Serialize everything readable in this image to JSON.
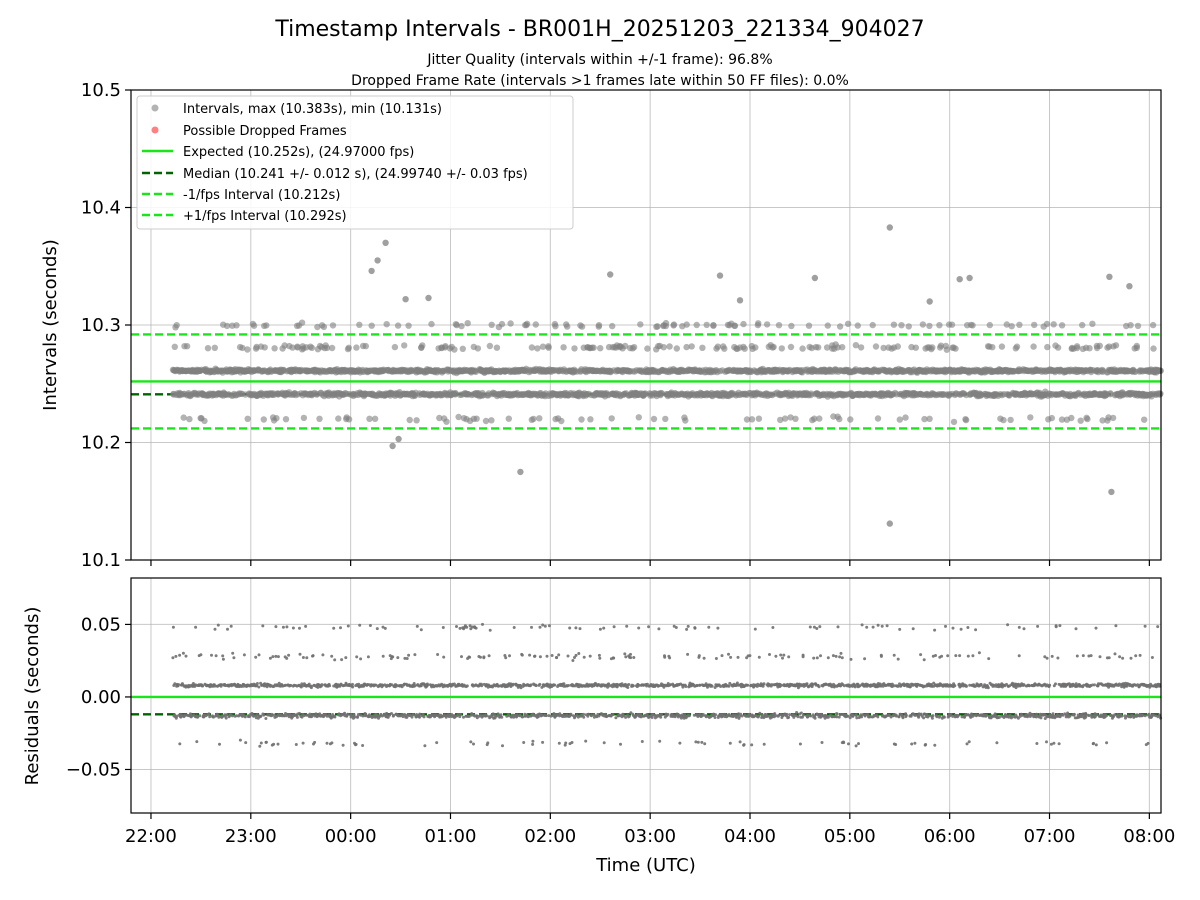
{
  "chart_data": [
    {
      "type": "scatter",
      "title": "Timestamp Intervals - BR001H_20251203_221334_904027",
      "subtitle_lines": [
        "Jitter Quality (intervals within +/-1 frame): 96.8%",
        "Dropped Frame Rate (intervals >1 frames late within 50 FF files): 0.0%"
      ],
      "xlabel": "",
      "ylabel": "Intervals (seconds)",
      "ylim": [
        10.1,
        10.5
      ],
      "yticks": [
        "10.1",
        "10.2",
        "10.3",
        "10.4",
        "10.5"
      ],
      "xlim": [
        "21:48",
        "08:07"
      ],
      "x_start": "22:13",
      "x_end": "08:07",
      "grid": true,
      "legend_position": "top-left",
      "series": [
        {
          "name": "Intervals, max (10.383s), min (10.131s)",
          "kind": "scatter",
          "color": "#808080",
          "band_values": [
            10.241,
            10.261,
            10.281
          ],
          "outliers": [
            [
              0.21,
              10.346
            ],
            [
              0.27,
              10.355
            ],
            [
              0.35,
              10.37
            ],
            [
              0.42,
              10.197
            ],
            [
              0.48,
              10.203
            ],
            [
              0.55,
              10.322
            ],
            [
              0.78,
              10.323
            ],
            [
              1.7,
              10.175
            ],
            [
              2.6,
              10.343
            ],
            [
              3.7,
              10.342
            ],
            [
              3.9,
              10.321
            ],
            [
              4.65,
              10.34
            ],
            [
              5.4,
              10.383
            ],
            [
              5.4,
              10.131
            ],
            [
              5.8,
              10.32
            ],
            [
              6.1,
              10.339
            ],
            [
              6.2,
              10.34
            ],
            [
              7.6,
              10.341
            ],
            [
              7.62,
              10.158
            ],
            [
              7.8,
              10.333
            ]
          ]
        },
        {
          "name": "Possible Dropped Frames",
          "kind": "scatter",
          "color": "#ff6060",
          "values": []
        },
        {
          "name": "Expected (10.252s), (24.97000 fps)",
          "kind": "hline",
          "value": 10.252,
          "color": "#19e619",
          "dash": "solid"
        },
        {
          "name": "Median (10.241 +/- 0.012 s), (24.99740 +/- 0.03 fps)",
          "kind": "hline",
          "value": 10.241,
          "color": "#006400",
          "dash": "dashed"
        },
        {
          "name": "-1/fps Interval (10.212s)",
          "kind": "hline",
          "value": 10.212,
          "color": "#19e619",
          "dash": "dashed"
        },
        {
          "name": "+1/fps Interval (10.292s)",
          "kind": "hline",
          "value": 10.292,
          "color": "#19e619",
          "dash": "dashed"
        }
      ]
    },
    {
      "type": "scatter",
      "title": "",
      "xlabel": "Time (UTC)",
      "ylabel": "Residuals (seconds)",
      "ylim": [
        -0.08,
        0.082
      ],
      "yticks": [
        "−0.05",
        "0.00",
        "0.05"
      ],
      "ytick_values": [
        -0.05,
        0.0,
        0.05
      ],
      "xticks": [
        "22:00",
        "23:00",
        "00:00",
        "01:00",
        "02:00",
        "03:00",
        "04:00",
        "05:00",
        "06:00",
        "07:00",
        "08:00"
      ],
      "grid": true,
      "series": [
        {
          "name": "",
          "kind": "scatter",
          "color": "#707070",
          "band_values": [
            -0.013,
            0.008,
            0.028
          ]
        },
        {
          "name": "",
          "kind": "hline",
          "value": 0.0,
          "color": "#19e619",
          "dash": "solid"
        },
        {
          "name": "",
          "kind": "hline",
          "value": -0.012,
          "color": "#006400",
          "dash": "dashed"
        }
      ]
    }
  ]
}
